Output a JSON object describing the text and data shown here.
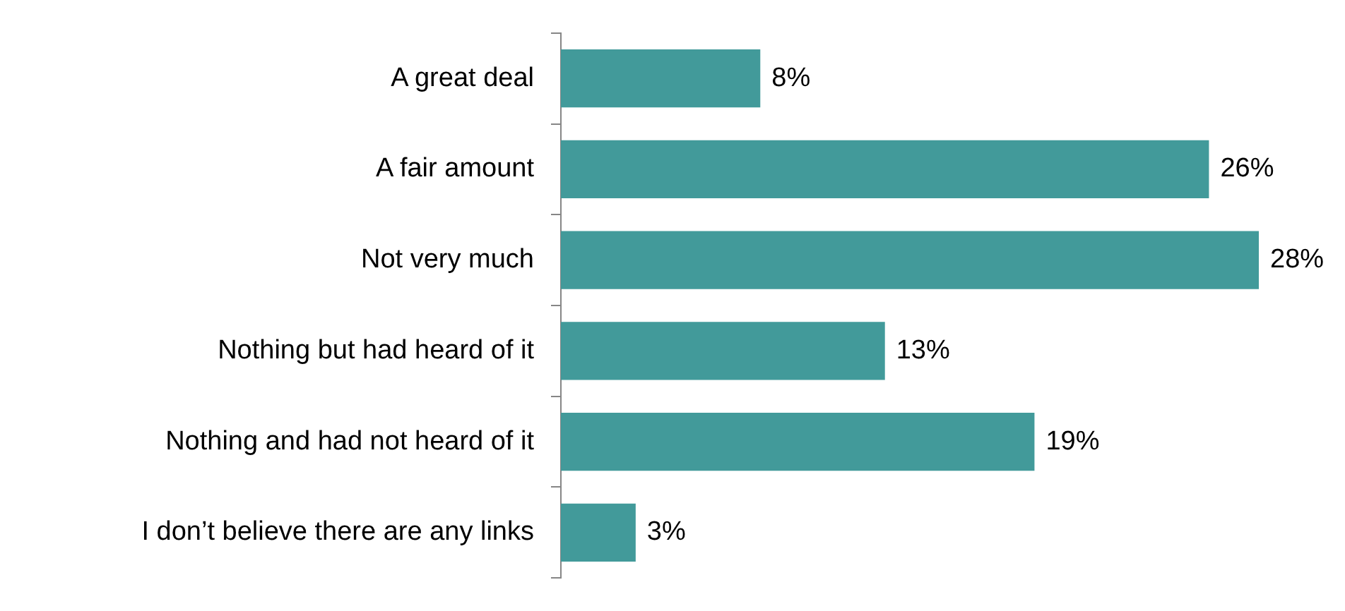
{
  "chart_data": {
    "type": "bar",
    "orientation": "horizontal",
    "categories": [
      "A great deal",
      "A fair amount",
      "Not very much",
      "Nothing but had heard of it",
      "Nothing and had not heard of it",
      "I don’t believe there are any links"
    ],
    "values": [
      8,
      26,
      28,
      13,
      19,
      3
    ],
    "value_labels": [
      "8%",
      "26%",
      "28%",
      "13%",
      "19%",
      "3%"
    ],
    "color": "#429a9a",
    "legend": false,
    "tick_labels": "y"
  }
}
